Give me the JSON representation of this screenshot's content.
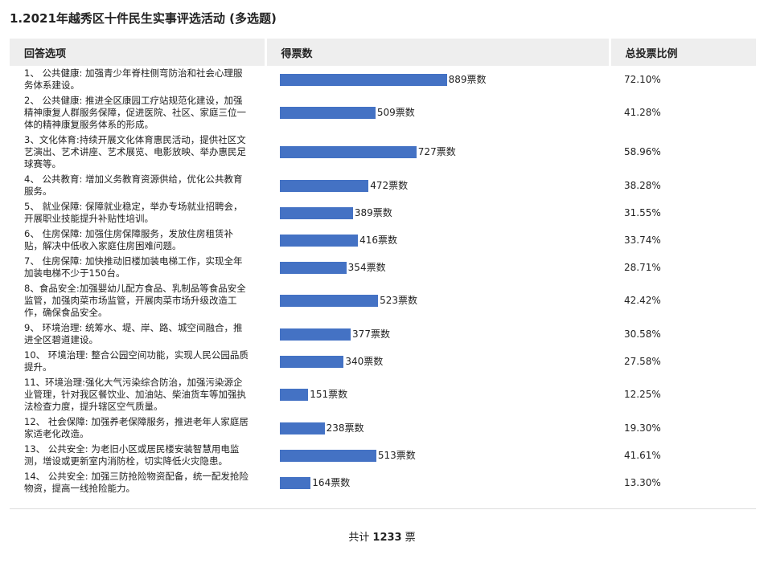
{
  "title": "1.2021年越秀区十件民生实事评选活动 (多选题)",
  "table": {
    "headers": [
      "回答选项",
      "得票数",
      "总投票比例"
    ],
    "rows": [
      {
        "option": "1、 公共健康: 加强青少年脊柱侧弯防治和社会心理服务体系建设。",
        "votes": 889,
        "votes_label": "889票数",
        "ratio": "72.10%"
      },
      {
        "option": "2、 公共健康: 推进全区康园工疗站规范化建设，加强精神康复人群服务保障，促进医院、社区、家庭三位一体的精神康复服务体系的形成。",
        "votes": 509,
        "votes_label": "509票数",
        "ratio": "41.28%"
      },
      {
        "option": "3、文化体育:持续开展文化体育惠民活动，提供社区文艺演出、艺术讲座、艺术展览、电影放映、举办惠民足球赛等。",
        "votes": 727,
        "votes_label": "727票数",
        "ratio": "58.96%"
      },
      {
        "option": "4、 公共教育: 增加义务教育资源供给，优化公共教育服务。",
        "votes": 472,
        "votes_label": "472票数",
        "ratio": "38.28%"
      },
      {
        "option": "5、 就业保障: 保障就业稳定，举办专场就业招聘会，开展职业技能提升补贴性培训。",
        "votes": 389,
        "votes_label": "389票数",
        "ratio": "31.55%"
      },
      {
        "option": "6、 住房保障: 加强住房保障服务，发放住房租赁补贴，解决中低收入家庭住房困难问题。",
        "votes": 416,
        "votes_label": "416票数",
        "ratio": "33.74%"
      },
      {
        "option": "7、 住房保障: 加快推动旧楼加装电梯工作，实现全年加装电梯不少于150台。",
        "votes": 354,
        "votes_label": "354票数",
        "ratio": "28.71%"
      },
      {
        "option": "8、食品安全:加强婴幼儿配方食品、乳制品等食品安全监管，加强肉菜市场监管，开展肉菜市场升级改造工作，确保食品安全。",
        "votes": 523,
        "votes_label": "523票数",
        "ratio": "42.42%"
      },
      {
        "option": "9、 环境治理: 统筹水、堤、岸、路、城空间融合，推进全区碧道建设。",
        "votes": 377,
        "votes_label": "377票数",
        "ratio": "30.58%"
      },
      {
        "option": "10、 环境治理: 整合公园空间功能，实现人民公园品质提升。",
        "votes": 340,
        "votes_label": "340票数",
        "ratio": "27.58%"
      },
      {
        "option": "11、环境治理:强化大气污染综合防治，加强污染源企业管理，针对我区餐饮业、加油站、柴油货车等加强执法检查力度，提升辖区空气质量。",
        "votes": 151,
        "votes_label": "151票数",
        "ratio": "12.25%"
      },
      {
        "option": "12、 社会保障: 加强养老保障服务，推进老年人家庭居家适老化改造。",
        "votes": 238,
        "votes_label": "238票数",
        "ratio": "19.30%"
      },
      {
        "option": "13、 公共安全: 为老旧小区或居民楼安装智慧用电监测，增设或更新室内消防栓，切实降低火灾隐患。",
        "votes": 513,
        "votes_label": "513票数",
        "ratio": "41.61%"
      },
      {
        "option": "14、 公共安全: 加强三防抢险物资配备，统一配发抢险物资，提高一线抢险能力。",
        "votes": 164,
        "votes_label": "164票数",
        "ratio": "13.30%"
      }
    ],
    "bar_color": "#4472c4"
  },
  "footer": {
    "prefix": "共计",
    "total": 1233,
    "suffix": "票"
  }
}
